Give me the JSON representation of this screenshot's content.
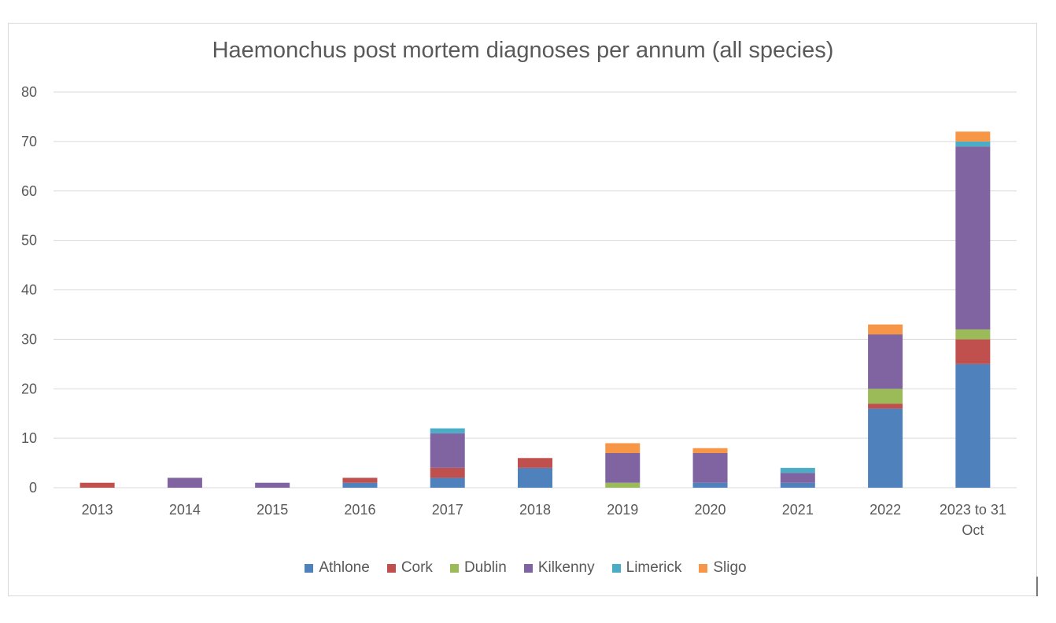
{
  "chart_data": {
    "type": "bar",
    "stacked": true,
    "title": "Haemonchus post mortem diagnoses per annum (all species)",
    "xlabel": "",
    "ylabel": "",
    "ylim": [
      0,
      80
    ],
    "yticks": [
      0,
      10,
      20,
      30,
      40,
      50,
      60,
      70,
      80
    ],
    "grid": true,
    "legend_position": "bottom",
    "categories": [
      "2013",
      "2014",
      "2015",
      "2016",
      "2017",
      "2018",
      "2019",
      "2020",
      "2021",
      "2022",
      "2023 to 31 Oct"
    ],
    "category_lines": [
      [
        "2013"
      ],
      [
        "2014"
      ],
      [
        "2015"
      ],
      [
        "2016"
      ],
      [
        "2017"
      ],
      [
        "2018"
      ],
      [
        "2019"
      ],
      [
        "2020"
      ],
      [
        "2021"
      ],
      [
        "2022"
      ],
      [
        "2023 to  31",
        "Oct"
      ]
    ],
    "series": [
      {
        "name": "Athlone",
        "color": "#4f81bd",
        "values": [
          0,
          0,
          0,
          1,
          2,
          4,
          0,
          1,
          1,
          16,
          25
        ]
      },
      {
        "name": "Cork",
        "color": "#c0504d",
        "values": [
          1,
          0,
          0,
          1,
          2,
          2,
          0,
          0,
          0,
          1,
          5
        ]
      },
      {
        "name": "Dublin",
        "color": "#9bbb59",
        "values": [
          0,
          0,
          0,
          0,
          0,
          0,
          1,
          0,
          0,
          3,
          2
        ]
      },
      {
        "name": "Kilkenny",
        "color": "#8064a2",
        "values": [
          0,
          2,
          1,
          0,
          7,
          0,
          6,
          6,
          2,
          11,
          37
        ]
      },
      {
        "name": "Limerick",
        "color": "#4bacc6",
        "values": [
          0,
          0,
          0,
          0,
          1,
          0,
          0,
          0,
          1,
          0,
          1
        ]
      },
      {
        "name": "Sligo",
        "color": "#f79646",
        "values": [
          0,
          0,
          0,
          0,
          0,
          0,
          2,
          1,
          0,
          2,
          2
        ]
      }
    ]
  }
}
